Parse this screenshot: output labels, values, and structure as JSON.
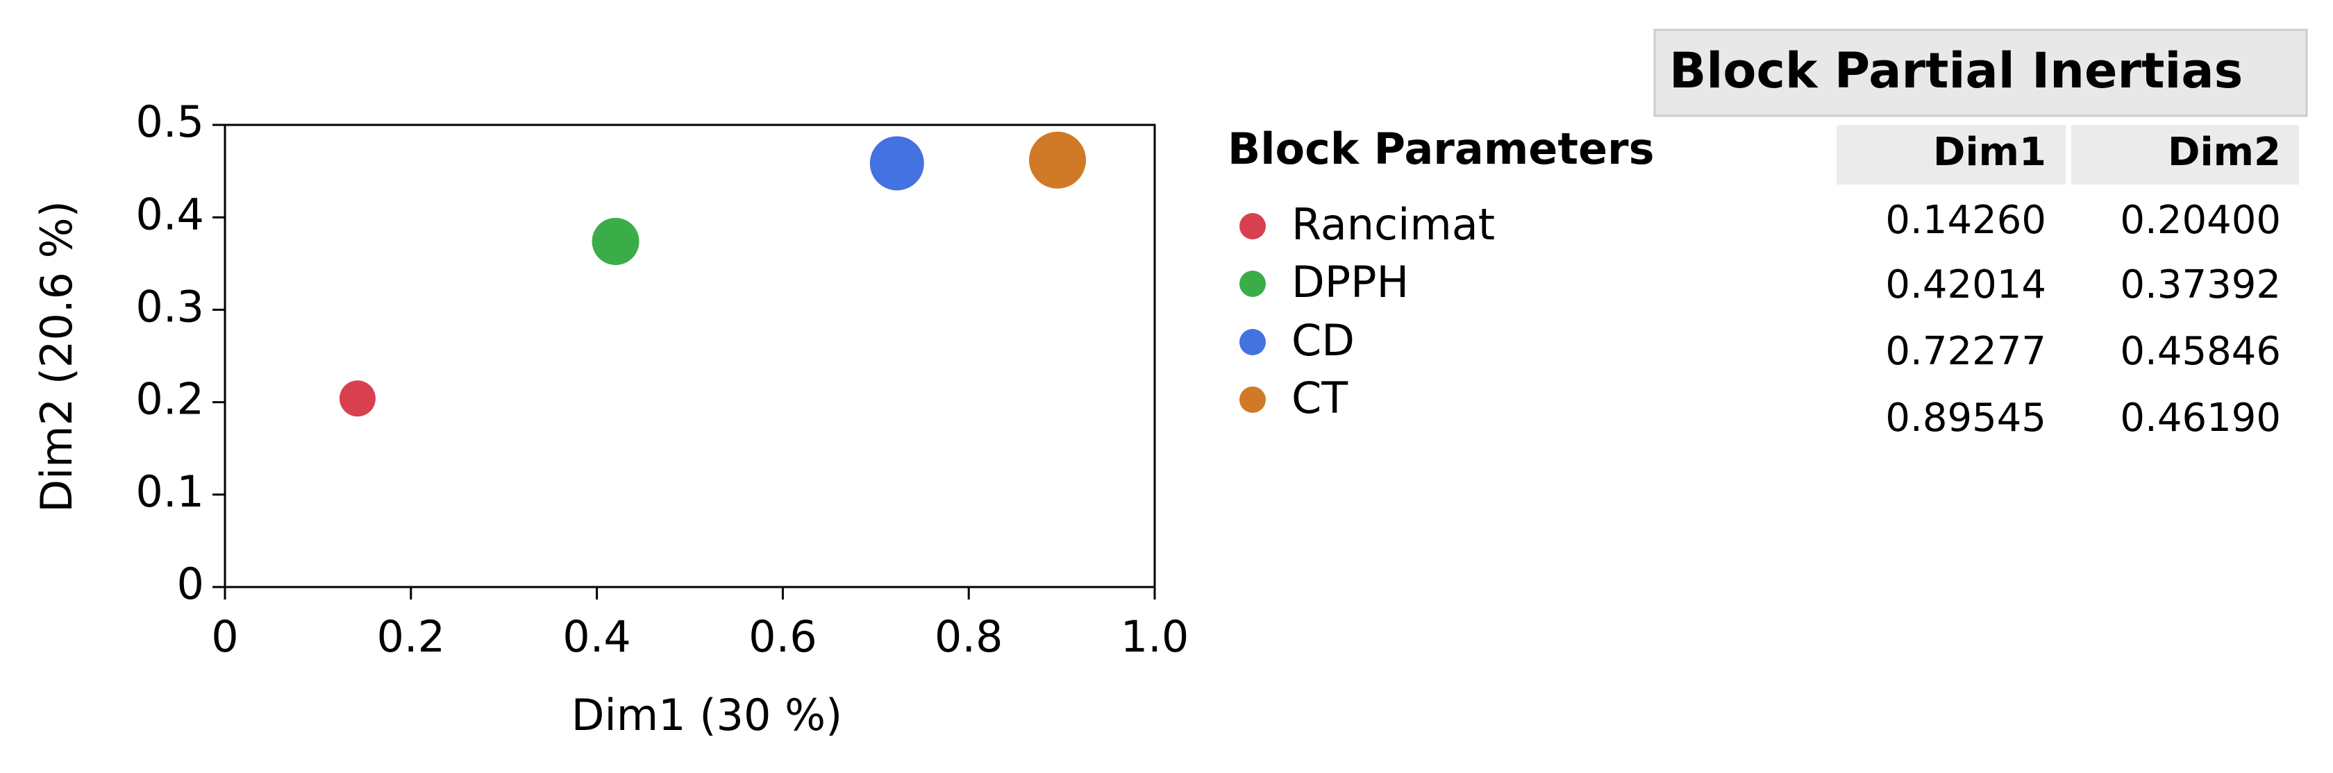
{
  "chart_data": {
    "type": "scatter",
    "xlabel": "Dim1  (30 %)",
    "ylabel": "Dim2  (20.6 %)",
    "xlim": [
      0,
      1
    ],
    "ylim": [
      0,
      0.5
    ],
    "xticks": [
      0,
      0.2,
      0.4,
      0.6,
      0.8,
      {
        "value": 1,
        "label": "1.0"
      }
    ],
    "yticks": [
      0,
      0.1,
      0.2,
      0.3,
      0.4,
      0.5
    ],
    "legend_title": "Block Parameters",
    "series": [
      {
        "name": "Rancimat",
        "color": "#d9404f",
        "x": [
          0.1426
        ],
        "values": [
          0.204
        ]
      },
      {
        "name": "DPPH",
        "color": "#3aad48",
        "x": [
          0.42014
        ],
        "values": [
          0.37392
        ]
      },
      {
        "name": "CD",
        "color": "#4472e0",
        "x": [
          0.72277
        ],
        "values": [
          0.45846
        ]
      },
      {
        "name": "CT",
        "color": "#d07a27",
        "x": [
          0.89545
        ],
        "values": [
          0.4619
        ]
      }
    ]
  },
  "table": {
    "title": "Block Partial Inertias",
    "headers": [
      "Dim1",
      "Dim2"
    ],
    "rows": [
      [
        "0.14260",
        "0.20400"
      ],
      [
        "0.42014",
        "0.37392"
      ],
      [
        "0.72277",
        "0.45846"
      ],
      [
        "0.89545",
        "0.46190"
      ]
    ]
  }
}
